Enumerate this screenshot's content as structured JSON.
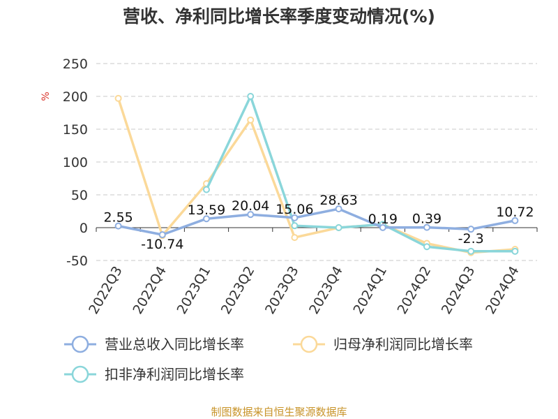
{
  "chart_data": {
    "type": "line",
    "title": "营收、净利同比增长率季度变动情况(%)",
    "unit": "%",
    "categories": [
      "2022Q3",
      "2022Q4",
      "2023Q1",
      "2023Q2",
      "2023Q3",
      "2023Q4",
      "2024Q1",
      "2024Q2",
      "2024Q3",
      "2024Q4"
    ],
    "ylim": [
      -50,
      250
    ],
    "yticks": [
      250,
      200,
      150,
      100,
      50,
      0,
      -50
    ],
    "grid": true,
    "legend_position": "bottom",
    "series": [
      {
        "name": "营业总收入同比增长率",
        "color": "#8eaee0",
        "values": [
          2.55,
          -10.74,
          13.59,
          20.04,
          15.06,
          28.63,
          0.19,
          0.39,
          -2.3,
          10.72
        ],
        "labels": [
          "2.55",
          "-10.74",
          "13.59",
          "20.04",
          "15.06",
          "28.63",
          "0.19",
          "0.39",
          "-2.3",
          "10.72"
        ]
      },
      {
        "name": "归母净利润同比增长率",
        "color": "#fbd999",
        "values": [
          197,
          -12,
          67,
          164,
          -15,
          0,
          5,
          -24,
          -38,
          -33
        ]
      },
      {
        "name": "扣非净利润同比增长率",
        "color": "#8ad6da",
        "values": [
          null,
          null,
          58,
          200,
          3,
          0,
          5,
          -29,
          -36,
          -36
        ]
      }
    ]
  },
  "source_text": "制图数据来自恒生聚源数据库"
}
